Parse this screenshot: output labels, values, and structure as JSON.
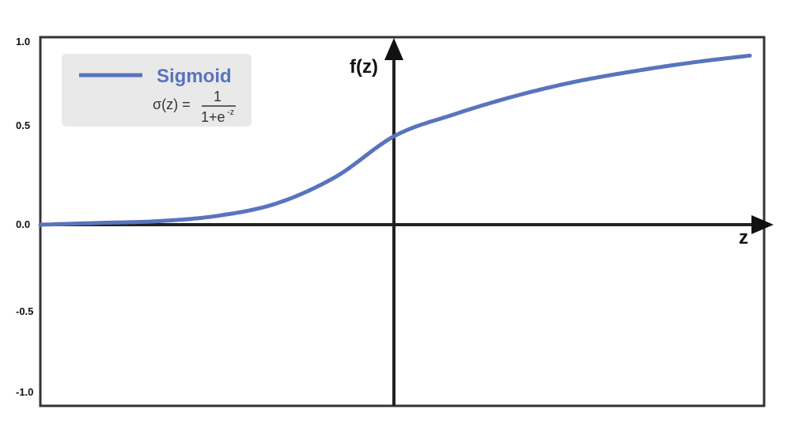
{
  "chart_data": {
    "type": "line",
    "title": "",
    "xlabel": "z",
    "ylabel": "f(z)",
    "ylim": [
      -1.0,
      1.0
    ],
    "xlim": [
      -6,
      6
    ],
    "y_ticks": [
      "1.0",
      "0.5",
      "0.0",
      "-0.5",
      "-1.0"
    ],
    "grid": false,
    "legend_position": "top-left",
    "series": [
      {
        "name": "Sigmoid",
        "color": "#5874be",
        "function": "sigmoid",
        "x": [
          -6,
          -5,
          -4,
          -3,
          -2,
          -1,
          0,
          1,
          2,
          3,
          4,
          5,
          6
        ],
        "y": [
          0.0,
          0.01,
          0.02,
          0.05,
          0.12,
          0.27,
          0.5,
          0.62,
          0.72,
          0.8,
          0.86,
          0.91,
          0.95
        ]
      }
    ],
    "legend": {
      "label": "Sigmoid",
      "formula_lhs": "σ(z) =",
      "formula_num": "1",
      "formula_den": "1+e",
      "formula_den_exp": "-z"
    }
  }
}
